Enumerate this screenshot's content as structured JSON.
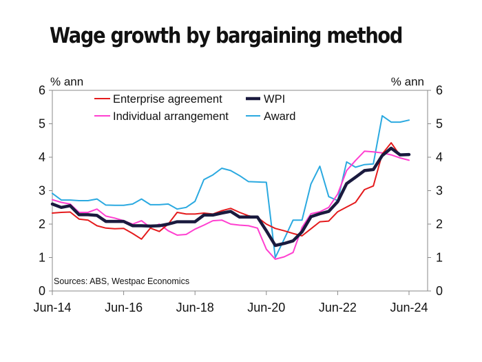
{
  "chart_data": {
    "type": "line",
    "title": "Wage growth by bargaining method",
    "y_unit_left": "% ann",
    "y_unit_right": "% ann",
    "ylim": [
      0,
      6
    ],
    "yticks": [
      0,
      1,
      2,
      3,
      4,
      5,
      6
    ],
    "x_ticks": [
      "Jun-14",
      "Jun-16",
      "Jun-18",
      "Jun-20",
      "Jun-22",
      "Jun-24"
    ],
    "x": [
      "Jun-14",
      "Sep-14",
      "Dec-14",
      "Mar-15",
      "Jun-15",
      "Sep-15",
      "Dec-15",
      "Mar-16",
      "Jun-16",
      "Sep-16",
      "Dec-16",
      "Mar-17",
      "Jun-17",
      "Sep-17",
      "Dec-17",
      "Mar-18",
      "Jun-18",
      "Sep-18",
      "Dec-18",
      "Mar-19",
      "Jun-19",
      "Sep-19",
      "Dec-19",
      "Mar-20",
      "Jun-20",
      "Sep-20",
      "Dec-20",
      "Mar-21",
      "Jun-21",
      "Sep-21",
      "Dec-21",
      "Mar-22",
      "Jun-22",
      "Sep-22",
      "Dec-22",
      "Mar-23",
      "Jun-23",
      "Sep-23",
      "Dec-23",
      "Mar-24",
      "Jun-24"
    ],
    "series": [
      {
        "name": "Enterprise agreement",
        "color": "#e41a1c",
        "stroke": 2,
        "values": [
          2.33,
          2.35,
          2.36,
          2.15,
          2.12,
          1.95,
          1.88,
          1.86,
          1.87,
          1.72,
          1.55,
          1.88,
          1.78,
          2.0,
          2.35,
          2.3,
          2.3,
          2.33,
          2.3,
          2.4,
          2.47,
          2.35,
          2.25,
          2.2,
          2.0,
          1.87,
          1.8,
          1.72,
          1.65,
          1.86,
          2.07,
          2.09,
          2.37,
          2.51,
          2.65,
          3.03,
          3.14,
          4.1,
          4.43,
          4.05,
          4.08
        ]
      },
      {
        "name": "WPI",
        "color": "#1a1a3e",
        "stroke": 4.5,
        "values": [
          2.6,
          2.5,
          2.55,
          2.28,
          2.28,
          2.26,
          2.08,
          2.08,
          2.08,
          1.95,
          1.95,
          1.94,
          1.95,
          2.0,
          2.07,
          2.07,
          2.07,
          2.27,
          2.27,
          2.33,
          2.38,
          2.21,
          2.21,
          2.21,
          1.8,
          1.36,
          1.42,
          1.5,
          1.77,
          2.22,
          2.31,
          2.38,
          2.67,
          3.21,
          3.4,
          3.6,
          3.63,
          4.05,
          4.27,
          4.07,
          4.08
        ]
      },
      {
        "name": "Individual arrangement",
        "color": "#ff3fd0",
        "stroke": 2,
        "values": [
          2.73,
          2.65,
          2.6,
          2.35,
          2.35,
          2.45,
          2.24,
          2.18,
          2.1,
          2.0,
          2.1,
          1.9,
          2.0,
          1.8,
          1.67,
          1.69,
          1.85,
          1.97,
          2.1,
          2.12,
          2.0,
          1.97,
          1.95,
          1.88,
          1.25,
          0.95,
          1.02,
          1.15,
          1.9,
          2.31,
          2.37,
          2.5,
          2.9,
          3.6,
          3.9,
          4.18,
          4.16,
          4.13,
          4.07,
          3.98,
          3.91
        ]
      },
      {
        "name": "Award",
        "color": "#2aa9e0",
        "stroke": 2,
        "values": [
          2.92,
          2.72,
          2.72,
          2.7,
          2.7,
          2.75,
          2.57,
          2.56,
          2.56,
          2.6,
          2.75,
          2.58,
          2.58,
          2.6,
          2.45,
          2.5,
          2.68,
          3.33,
          3.47,
          3.67,
          3.6,
          3.45,
          3.27,
          3.26,
          3.25,
          1.0,
          1.55,
          2.12,
          2.12,
          3.2,
          3.73,
          2.82,
          2.7,
          3.86,
          3.7,
          3.78,
          3.8,
          5.24,
          5.05,
          5.05,
          5.11
        ]
      }
    ],
    "legend": {
      "placement": "top-left",
      "order": [
        "Enterprise agreement",
        "WPI",
        "Individual arrangement",
        "Award"
      ]
    },
    "grid": false,
    "source": "Sources: ABS, Westpac Economics"
  }
}
